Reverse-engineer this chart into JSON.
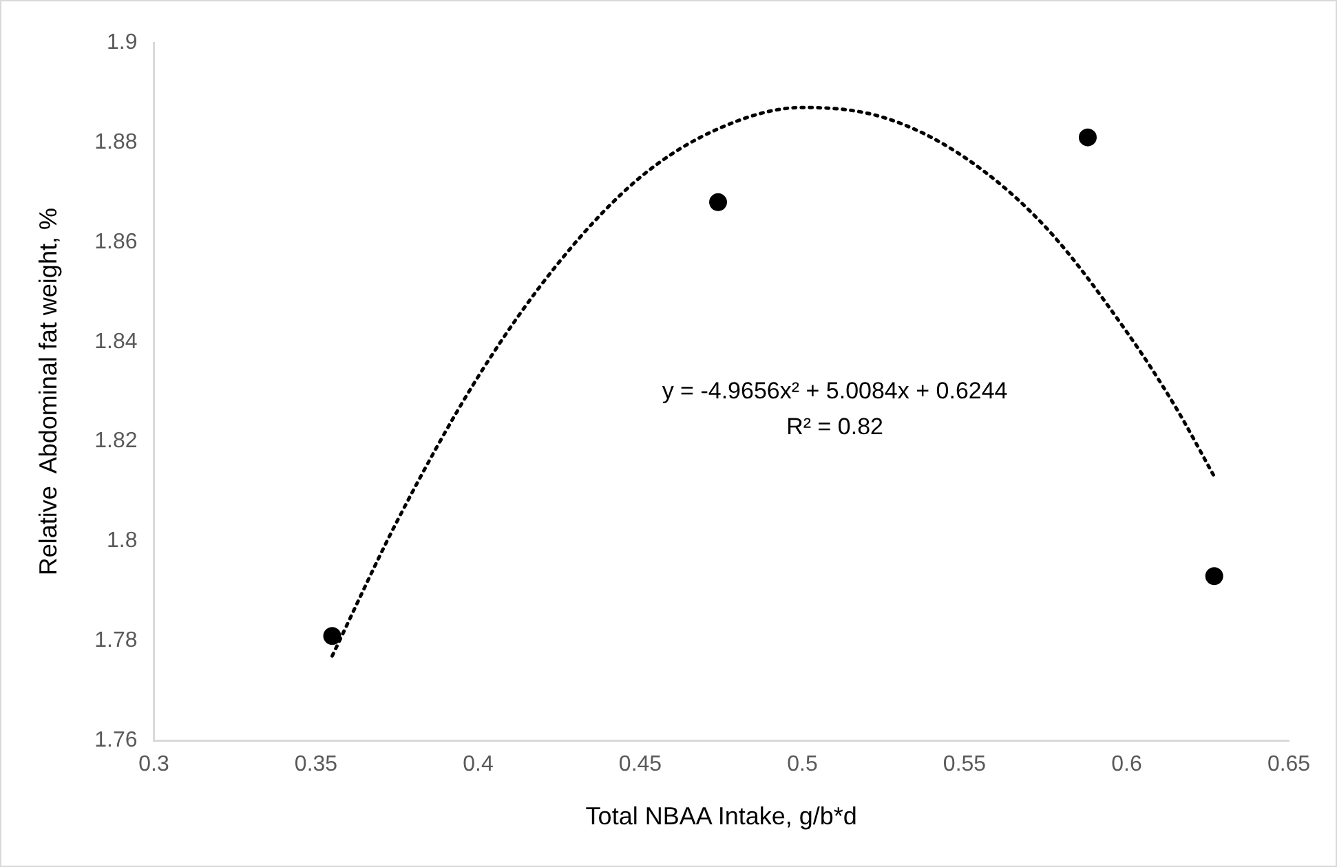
{
  "chart_data": {
    "type": "scatter",
    "xlabel": "Total NBAA Intake, g/b*d",
    "ylabel": "Relative  Abdominal fat weight, %",
    "xlim": [
      0.3,
      0.65
    ],
    "xticks": [
      0.3,
      0.35,
      0.4,
      0.45,
      0.5,
      0.55,
      0.6,
      0.65
    ],
    "ylim": [
      1.76,
      1.9
    ],
    "yticks": [
      1.76,
      1.78,
      1.8,
      1.82,
      1.84,
      1.86,
      1.88,
      1.9
    ],
    "grid": false,
    "legend": false,
    "marker": "circle",
    "series": [
      {
        "type": "scatter",
        "color": "#000000",
        "x": [
          0.355,
          0.474,
          0.588,
          0.627
        ],
        "values": [
          1.781,
          1.868,
          1.881,
          1.793
        ]
      },
      {
        "type": "line",
        "color": "#000000",
        "line_style": "dotted",
        "marker": "none",
        "x": [
          0.355,
          0.375,
          0.4,
          0.425,
          0.45,
          0.475,
          0.5,
          0.525,
          0.55,
          0.575,
          0.6,
          0.615,
          0.627
        ],
        "values": [
          1.777,
          1.804,
          1.833,
          1.856,
          1.873,
          1.883,
          1.887,
          1.885,
          1.877,
          1.863,
          1.842,
          1.827,
          1.813
        ]
      }
    ],
    "annotations": [
      "y = -4.9656x² + 5.0084x + 0.6244",
      "R² = 0.82"
    ]
  }
}
